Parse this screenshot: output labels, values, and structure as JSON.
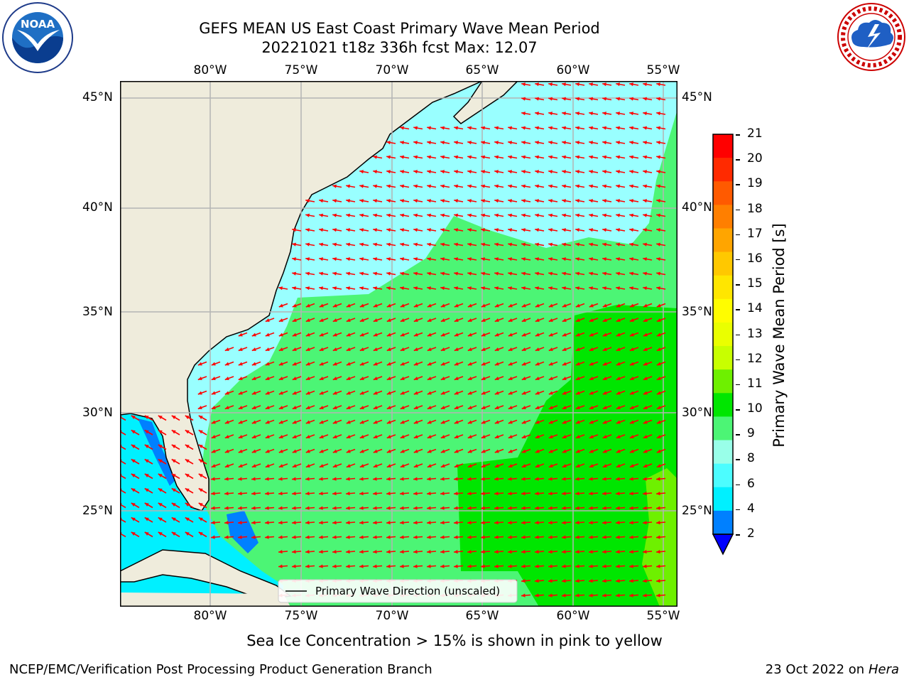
{
  "title": {
    "line1": "GEFS MEAN US East Coast Primary Wave Mean Period",
    "line2": "20221021 t18z 336h fcst   Max: 12.07"
  },
  "logos": {
    "left": "NOAA",
    "left_ring": "NATIONAL OCEANIC AND ATMOSPHERIC ADMINISTRATION",
    "left_ring_bottom": "U.S. DEPARTMENT OF COMMERCE",
    "right_ring": "NATIONAL WEATHER SERVICE"
  },
  "map": {
    "lon_labels": [
      "80°W",
      "75°W",
      "70°W",
      "65°W",
      "60°W",
      "55°W"
    ],
    "lat_labels": [
      "45°N",
      "40°N",
      "35°N",
      "30°N",
      "25°N"
    ],
    "legend_label": "Primary Wave Direction (unscaled)",
    "arrow_color": "#ff0000",
    "land_color": "#efecdc"
  },
  "colorbar": {
    "label": "Primary Wave Mean Period [s]",
    "ticks": [
      "21",
      "20",
      "19",
      "18",
      "17",
      "16",
      "15",
      "14",
      "13",
      "12",
      "11",
      "10",
      "9",
      "8",
      "6",
      "4",
      "2"
    ],
    "colors": [
      "#ff0000",
      "#ff2a00",
      "#ff5a00",
      "#ff7f00",
      "#ffa500",
      "#ffc800",
      "#ffe600",
      "#fffd00",
      "#eaff00",
      "#c8ff00",
      "#6ef000",
      "#00e600",
      "#4cf575",
      "#99ffe9",
      "#4cfdff",
      "#00f0ff",
      "#0080ff",
      "#0000ff"
    ]
  },
  "notes": {
    "sea_ice": "Sea Ice Concentration > 15% is shown in pink to yellow"
  },
  "footer": {
    "left": "NCEP/EMC/Verification Post Processing Product Generation Branch",
    "right_date": "23 Oct 2022 on ",
    "right_host": "Hera"
  }
}
